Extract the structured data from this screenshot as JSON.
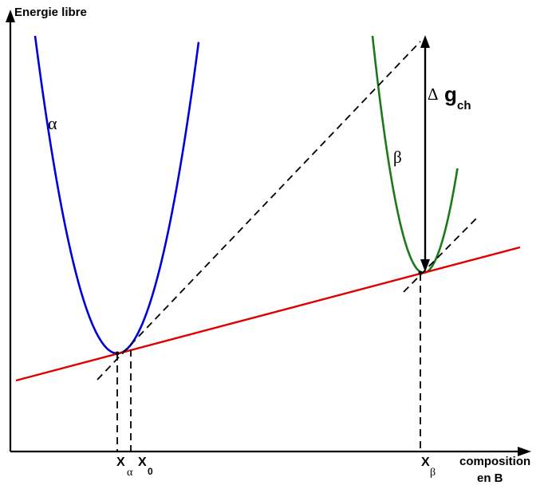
{
  "y_axis_label": "Energie libre",
  "x_axis_label_line1": "composition",
  "x_axis_label_line2": "en B",
  "phase_alpha_label": "α",
  "phase_beta_label": "β",
  "delta_symbol": "Δ",
  "delta_g_main": "g",
  "delta_g_sub": "ch",
  "x_alpha_main": "X",
  "x_alpha_sub": "α",
  "x_zero_main": "X",
  "x_zero_sub": "0",
  "x_beta_main": "X",
  "x_beta_sub": "β",
  "colors": {
    "alpha_curve": "#0000dd",
    "beta_curve": "#1a7a1a",
    "common_tangent": "#e00000",
    "axes": "#000000",
    "guides": "#000000"
  }
}
